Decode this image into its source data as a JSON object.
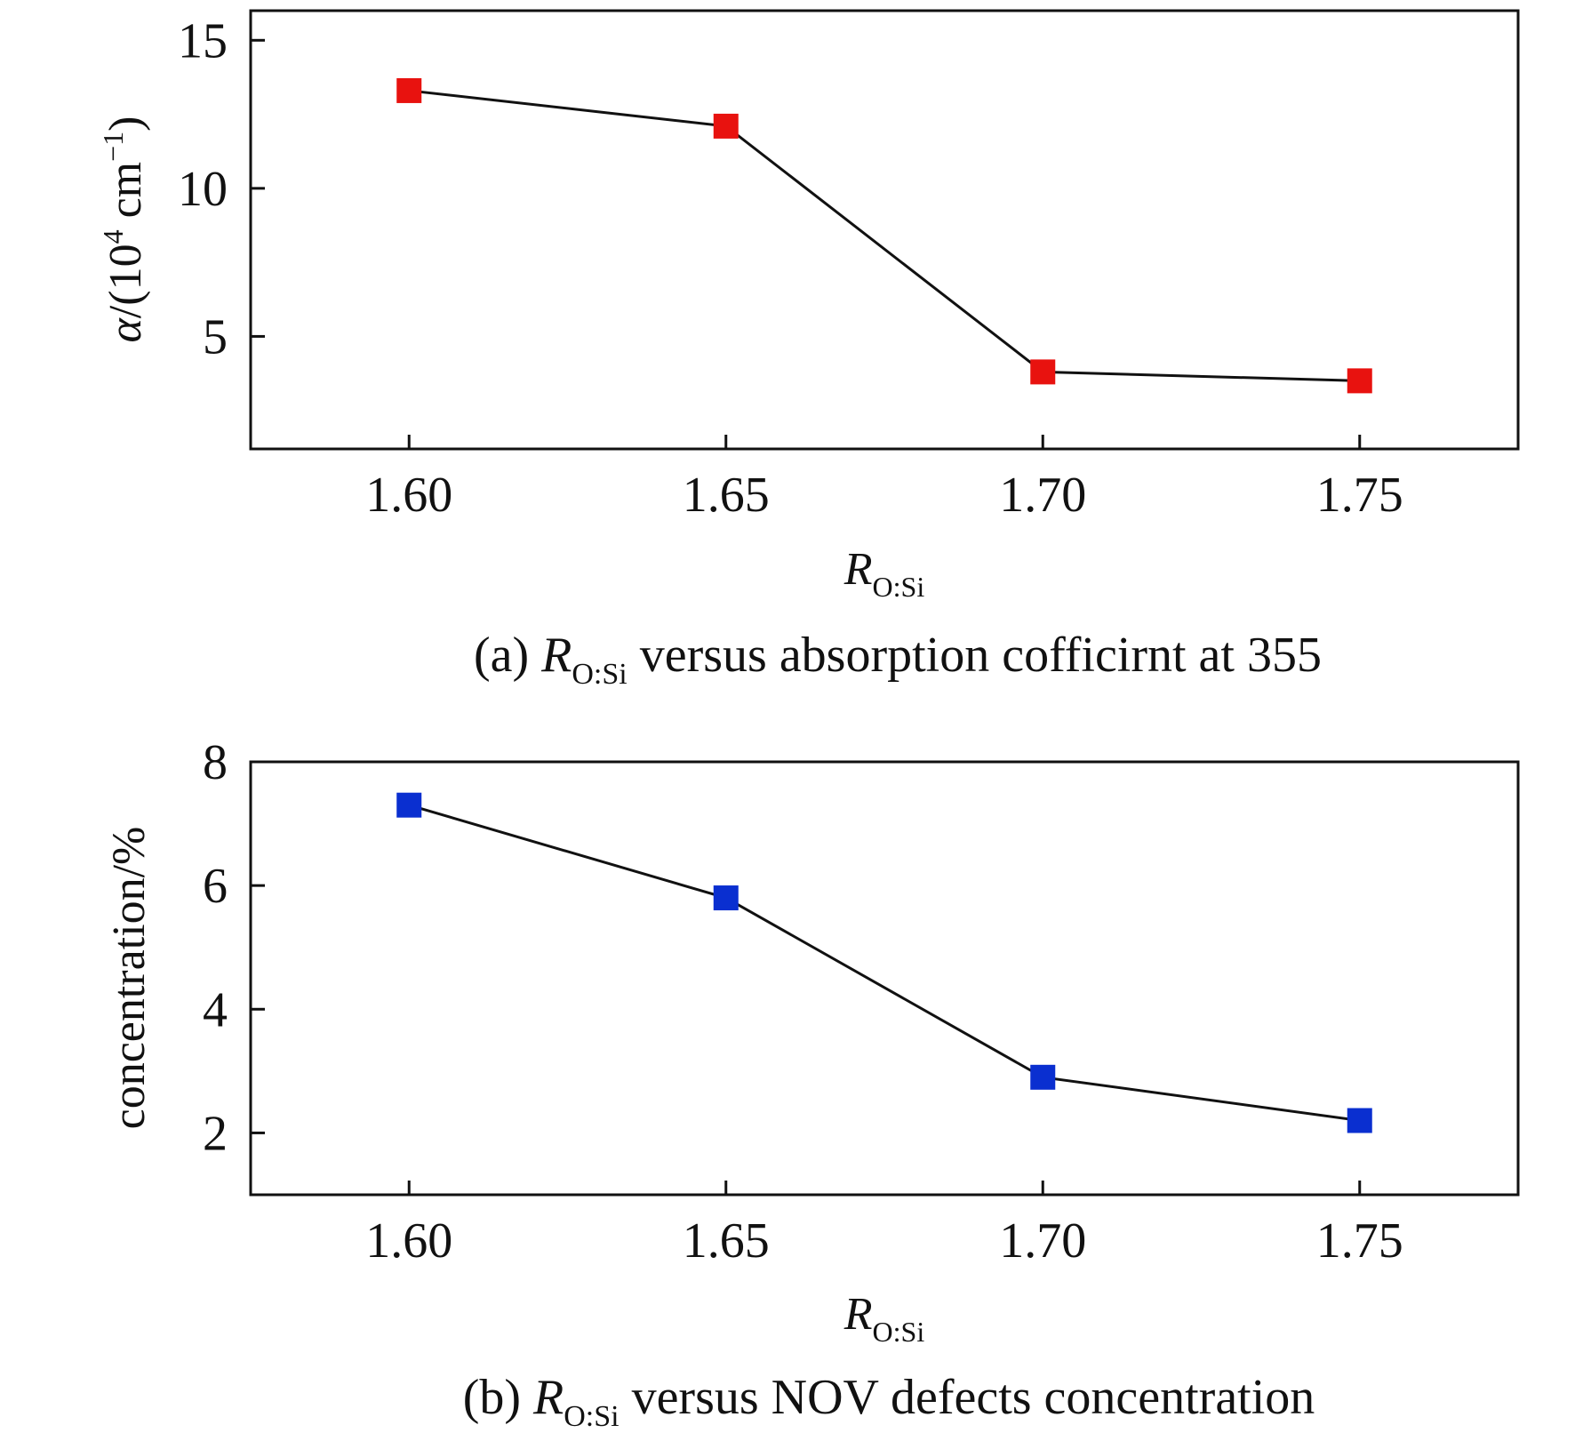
{
  "chart_data": [
    {
      "type": "line",
      "panel": "a",
      "x": [
        1.6,
        1.65,
        1.7,
        1.75
      ],
      "series": [
        {
          "values": [
            13.3,
            12.1,
            3.8,
            3.5
          ],
          "color": "#e8120f",
          "marker": "square"
        }
      ],
      "xticks": [
        "1.60",
        "1.65",
        "1.70",
        "1.75"
      ],
      "yticks": [
        "5",
        "10",
        "15"
      ],
      "xlim": [
        1.575,
        1.775
      ],
      "ylim": [
        1.2,
        16.0
      ],
      "xlabel": {
        "main": "R",
        "sub": "O:Si"
      },
      "ylabel": {
        "prefix": "α",
        "text": "/(10",
        "sup1": "4",
        "text2": " cm",
        "sup2": "−1",
        "close": ")"
      },
      "caption": {
        "prefix": "(a) ",
        "var": "R",
        "sub": "O:Si",
        "rest": " versus absorption cofficirnt at 355"
      },
      "grid": false
    },
    {
      "type": "line",
      "panel": "b",
      "x": [
        1.6,
        1.65,
        1.7,
        1.75
      ],
      "series": [
        {
          "values": [
            7.3,
            5.8,
            2.9,
            2.2
          ],
          "color": "#0a2fd0",
          "marker": "square"
        }
      ],
      "xticks": [
        "1.60",
        "1.65",
        "1.70",
        "1.75"
      ],
      "yticks": [
        "2",
        "4",
        "6",
        "8"
      ],
      "xlim": [
        1.575,
        1.775
      ],
      "ylim": [
        1.0,
        8.0
      ],
      "xlabel": {
        "main": "R",
        "sub": "O:Si"
      },
      "ylabel": {
        "text": "concentration/%"
      },
      "caption": {
        "prefix": "(b) ",
        "var": "R",
        "sub": "O:Si",
        "rest": " versus NOV defects concentration"
      },
      "grid": false
    }
  ]
}
